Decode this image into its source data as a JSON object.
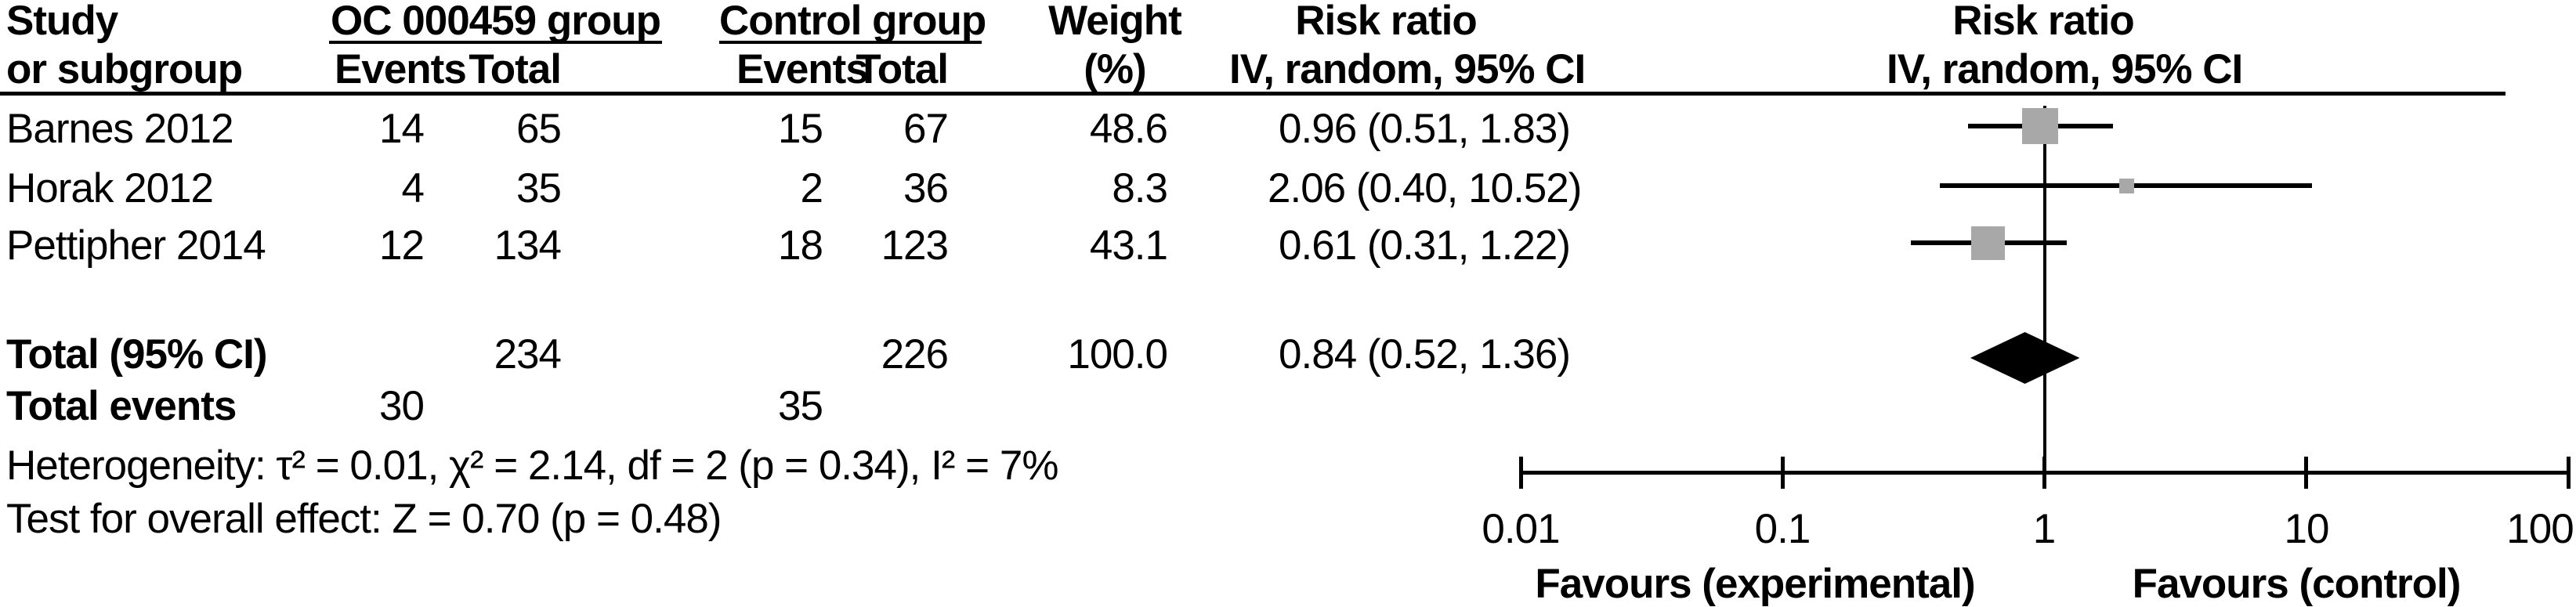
{
  "header": {
    "study_line1": "Study",
    "study_line2": "or subgroup",
    "group1_label": "OC 000459 group",
    "group2_label": "Control group",
    "events1_label": "Events",
    "total1_label": "Total",
    "events2_label": "Events",
    "total2_label": "Total",
    "weight_line1": "Weight",
    "weight_line2": "(%)",
    "rr_left_line1": "Risk ratio",
    "rr_left_line2": "IV, random, 95% CI",
    "rr_right_line1": "Risk ratio",
    "rr_right_line2": "IV, random, 95% CI"
  },
  "rows": [
    {
      "study": "Barnes 2012",
      "e1": "14",
      "t1": "65",
      "e2": "15",
      "t2": "67",
      "weight": "48.6",
      "rr_text": "0.96 (0.51, 1.83)"
    },
    {
      "study": "Horak 2012",
      "e1": "4",
      "t1": "35",
      "e2": "2",
      "t2": "36",
      "weight": "8.3",
      "rr_text": "2.06 (0.40, 10.52)"
    },
    {
      "study": "Pettipher 2014",
      "e1": "12",
      "t1": "134",
      "e2": "18",
      "t2": "123",
      "weight": "43.1",
      "rr_text": "0.61 (0.31, 1.22)"
    }
  ],
  "totals": {
    "total_label": "Total (95% CI)",
    "total_t1": "234",
    "total_t2": "226",
    "total_weight": "100.0",
    "total_rr_text": "0.84 (0.52, 1.36)",
    "total_events_label": "Total events",
    "total_events_e1": "30",
    "total_events_e2": "35"
  },
  "stats": {
    "heterogeneity": "Heterogeneity: τ² = 0.01, χ² = 2.14, df = 2 (p = 0.34), I² = 7%",
    "overall_effect": "Test for overall effect: Z = 0.70 (p = 0.48)"
  },
  "chart_data": {
    "type": "forest",
    "x_scale": "log10",
    "x_range": [
      0.01,
      100
    ],
    "x_ticks": [
      0.01,
      0.1,
      1,
      10,
      100
    ],
    "x_tick_labels": [
      "0.01",
      "0.1",
      "1",
      "10",
      "100"
    ],
    "ref_line_x": 1,
    "effect_measure": "Risk ratio",
    "method": "IV, random, 95% CI",
    "studies": [
      {
        "name": "Barnes 2012",
        "events_exp": 14,
        "total_exp": 65,
        "events_ctrl": 15,
        "total_ctrl": 67,
        "weight_pct": 48.6,
        "rr": 0.96,
        "ci_low": 0.51,
        "ci_high": 1.83
      },
      {
        "name": "Horak 2012",
        "events_exp": 4,
        "total_exp": 35,
        "events_ctrl": 2,
        "total_ctrl": 36,
        "weight_pct": 8.3,
        "rr": 2.06,
        "ci_low": 0.4,
        "ci_high": 10.52
      },
      {
        "name": "Pettipher 2014",
        "events_exp": 12,
        "total_exp": 134,
        "events_ctrl": 18,
        "total_ctrl": 123,
        "weight_pct": 43.1,
        "rr": 0.61,
        "ci_low": 0.31,
        "ci_high": 1.22
      }
    ],
    "total": {
      "label": "Total (95% CI)",
      "total_exp": 234,
      "total_ctrl": 226,
      "weight_pct": 100.0,
      "rr": 0.84,
      "ci_low": 0.52,
      "ci_high": 1.36,
      "total_events_exp": 30,
      "total_events_ctrl": 35
    },
    "heterogeneity": {
      "tau2": 0.01,
      "chi2": 2.14,
      "df": 2,
      "p": 0.34,
      "i2_pct": 7
    },
    "overall_effect": {
      "z": 0.7,
      "p": 0.48
    },
    "footer_left": "Favours (experimental)",
    "footer_right": "Favours (control)",
    "colors": {
      "square": "#a8a8a8",
      "diamond": "#000000",
      "line": "#000000"
    }
  }
}
